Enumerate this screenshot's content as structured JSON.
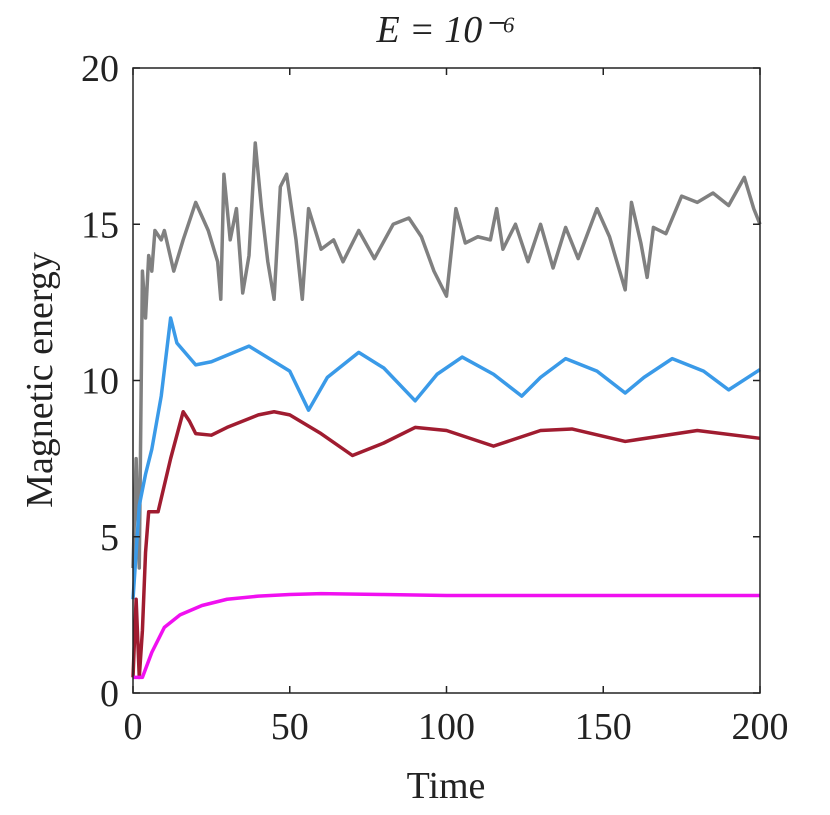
{
  "chart_data": {
    "type": "line",
    "title": "E = 10⁻⁶",
    "xlabel": "Time",
    "ylabel": "Magnetic energy",
    "xlim": [
      0,
      200
    ],
    "ylim": [
      0,
      20
    ],
    "xticks": [
      0,
      50,
      100,
      150,
      200
    ],
    "yticks": [
      0,
      5,
      10,
      15,
      20
    ],
    "grid": false,
    "series": [
      {
        "color": "#808080",
        "x": [
          0,
          1,
          2,
          3,
          4,
          5,
          6,
          7,
          9,
          10,
          13,
          16,
          20,
          24,
          27,
          28,
          29,
          31,
          33,
          35,
          37,
          39,
          41,
          43,
          45,
          47,
          49,
          52,
          54,
          56,
          60,
          64,
          67,
          72,
          77,
          83,
          88,
          92,
          96,
          100,
          103,
          106,
          110,
          114,
          116,
          118,
          122,
          126,
          130,
          134,
          138,
          142,
          148,
          152,
          157,
          159,
          162,
          164,
          166,
          170,
          175,
          180,
          185,
          190,
          195,
          198,
          200
        ],
        "values": [
          4,
          7.5,
          4,
          13.5,
          12,
          14,
          13.5,
          14.8,
          14.5,
          14.8,
          13.5,
          14.5,
          15.7,
          14.8,
          13.8,
          12.6,
          16.6,
          14.5,
          15.5,
          12.8,
          14,
          17.6,
          15.5,
          13.8,
          12.6,
          16.2,
          16.6,
          14.5,
          12.6,
          15.5,
          14.2,
          14.5,
          13.8,
          14.8,
          13.9,
          15,
          15.2,
          14.6,
          13.5,
          12.7,
          15.5,
          14.4,
          14.6,
          14.5,
          15.5,
          14.2,
          15,
          13.8,
          15,
          13.6,
          14.9,
          13.9,
          15.5,
          14.6,
          12.9,
          15.7,
          14.4,
          13.3,
          14.9,
          14.7,
          15.9,
          15.7,
          16,
          15.6,
          16.5,
          15.5,
          15
        ]
      },
      {
        "color": "#3a9ae8",
        "x": [
          0,
          2,
          4,
          6,
          9,
          12,
          14,
          20,
          25,
          37,
          50,
          56,
          62,
          72,
          80,
          90,
          97,
          105,
          115,
          124,
          130,
          138,
          148,
          157,
          163,
          172,
          182,
          190,
          200
        ],
        "values": [
          3,
          6,
          7,
          7.8,
          9.5,
          12,
          11.2,
          10.5,
          10.6,
          11.1,
          10.3,
          9.05,
          10.1,
          10.9,
          10.4,
          9.35,
          10.2,
          10.75,
          10.2,
          9.5,
          10.1,
          10.7,
          10.3,
          9.6,
          10.1,
          10.7,
          10.3,
          9.7,
          10.35
        ]
      },
      {
        "color": "#a01c30",
        "x": [
          0,
          1,
          2,
          3,
          4,
          5,
          8,
          12,
          16,
          18,
          20,
          25,
          30,
          40,
          45,
          50,
          60,
          70,
          80,
          90,
          100,
          115,
          130,
          140,
          157,
          180,
          200
        ],
        "values": [
          0.5,
          3,
          0.5,
          2,
          4.5,
          5.8,
          5.8,
          7.5,
          9,
          8.7,
          8.3,
          8.25,
          8.5,
          8.9,
          9,
          8.9,
          8.3,
          7.6,
          8,
          8.5,
          8.4,
          7.9,
          8.4,
          8.45,
          8.05,
          8.4,
          8.15
        ]
      },
      {
        "color": "#f010f0",
        "x": [
          0,
          3,
          6,
          10,
          15,
          22,
          30,
          40,
          50,
          60,
          80,
          100,
          130,
          160,
          200
        ],
        "values": [
          0.5,
          0.5,
          1.3,
          2.1,
          2.5,
          2.8,
          3,
          3.1,
          3.15,
          3.18,
          3.15,
          3.12,
          3.12,
          3.12,
          3.12
        ]
      }
    ]
  }
}
